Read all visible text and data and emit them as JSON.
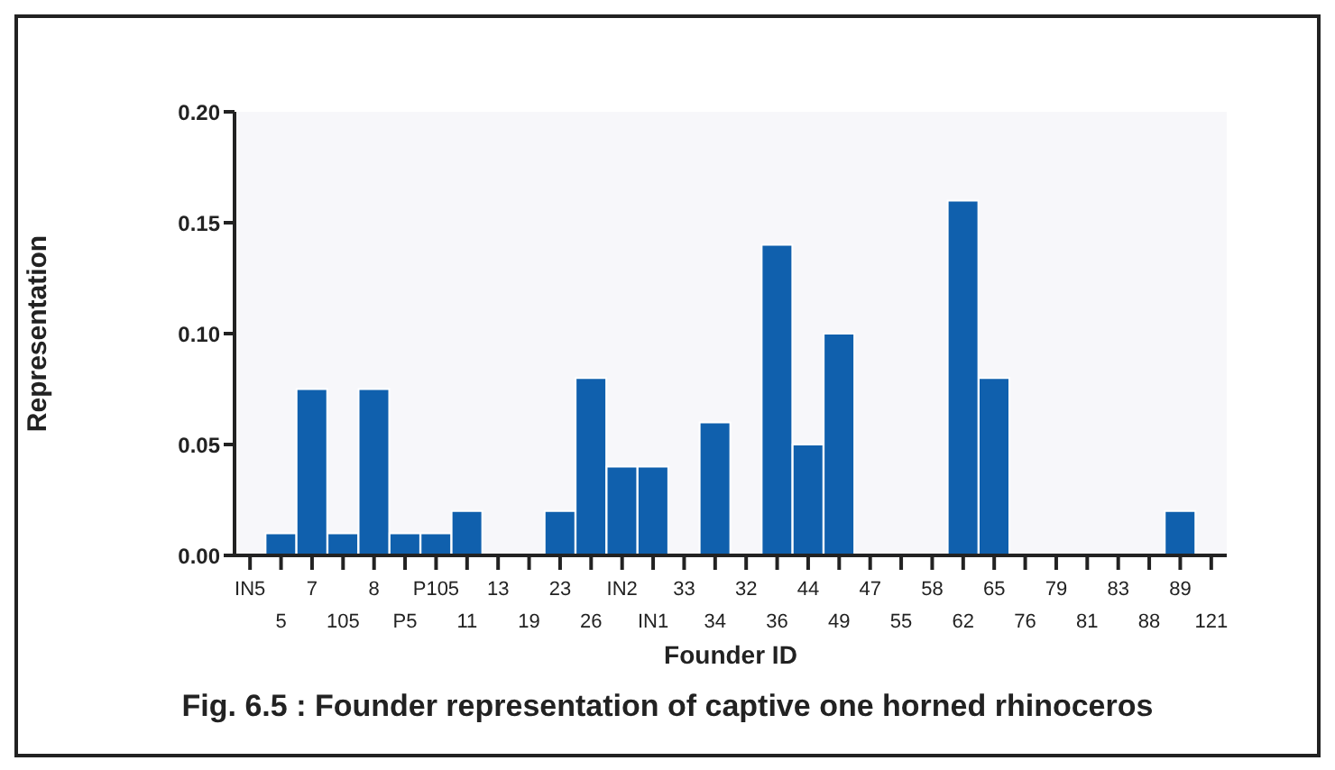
{
  "chart_data": {
    "type": "bar",
    "title": "Fig. 6.5 : Founder representation of captive one horned rhinoceros",
    "xlabel": "Founder ID",
    "ylabel": "Representation",
    "categories": [
      "IN5",
      "5",
      "7",
      "105",
      "8",
      "P5",
      "P105",
      "11",
      "13",
      "19",
      "23",
      "26",
      "IN2",
      "IN1",
      "33",
      "34",
      "32",
      "36",
      "44",
      "49",
      "47",
      "55",
      "58",
      "62",
      "65",
      "76",
      "79",
      "81",
      "83",
      "88",
      "89",
      "121"
    ],
    "values": [
      0,
      0.01,
      0.075,
      0.01,
      0.075,
      0.01,
      0.01,
      0.02,
      0,
      0,
      0.02,
      0.08,
      0.04,
      0.04,
      0,
      0.06,
      0,
      0.14,
      0.05,
      0.1,
      0,
      0,
      0,
      0.16,
      0.08,
      0,
      0,
      0,
      0,
      0,
      0.02,
      0
    ],
    "color": "#1060ad",
    "ylim": [
      0,
      0.2
    ],
    "yticks": [
      {
        "value": 0,
        "label": "0.00"
      },
      {
        "value": 0.05,
        "label": "0.05"
      },
      {
        "value": 0.1,
        "label": "0.10"
      },
      {
        "value": 0.15,
        "label": "0.15"
      },
      {
        "value": 0.2,
        "label": "0.20"
      }
    ],
    "legend": false
  }
}
